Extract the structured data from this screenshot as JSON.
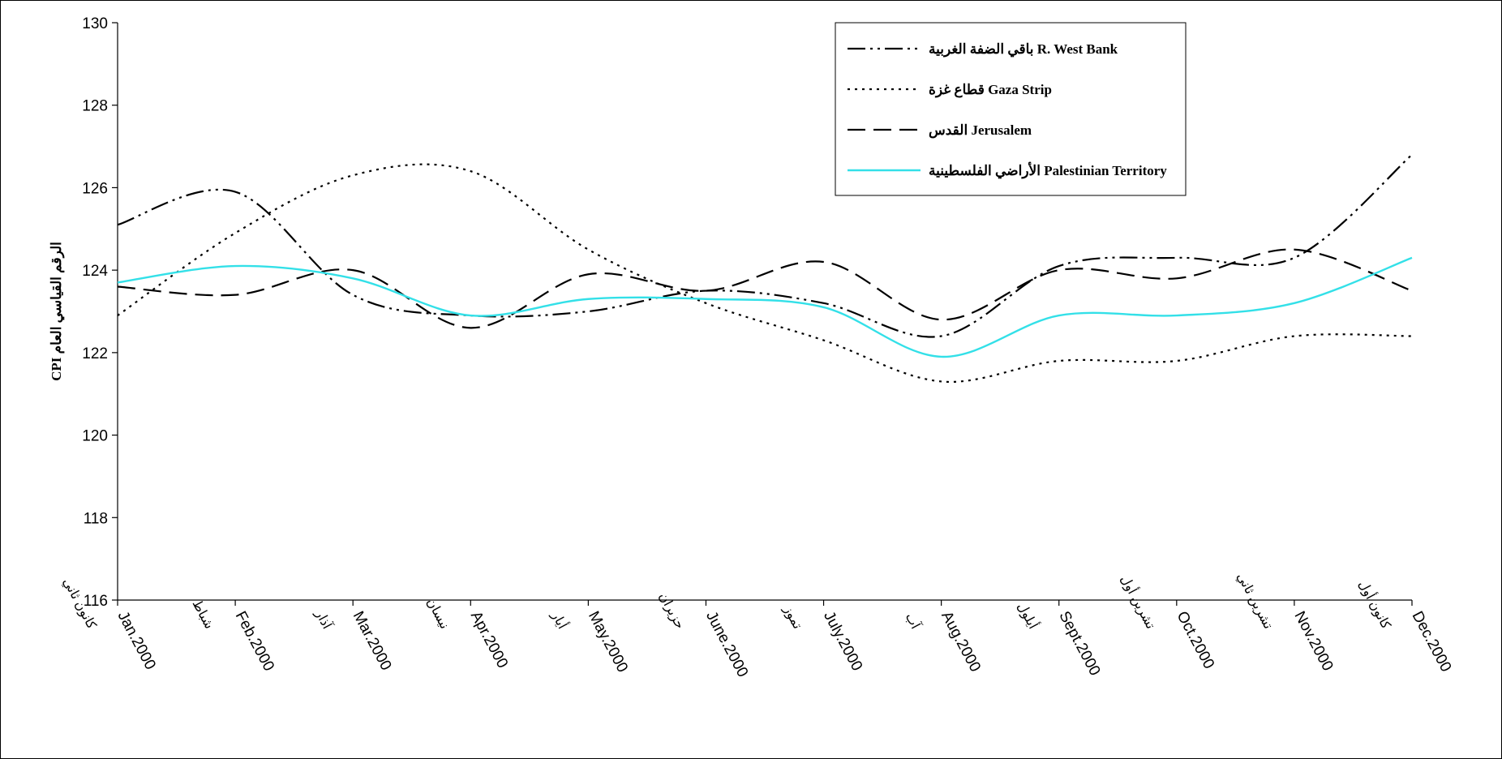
{
  "chart_data": {
    "type": "line",
    "ylabel": "CPI الرقم القياسي العام",
    "xlabel": "",
    "ylim": [
      116,
      130
    ],
    "y_ticks": [
      116,
      118,
      120,
      122,
      124,
      126,
      128,
      130
    ],
    "grid": false,
    "legend_position": "top-right",
    "categories": [
      {
        "en": "Jan.2000",
        "ar": "كانون ثاني"
      },
      {
        "en": "Feb.2000",
        "ar": "شباط"
      },
      {
        "en": "Mar.2000",
        "ar": "آذار"
      },
      {
        "en": "Apr.2000",
        "ar": "نيسان"
      },
      {
        "en": "May.2000",
        "ar": "أيار"
      },
      {
        "en": "June.2000",
        "ar": "حزيران"
      },
      {
        "en": "July.2000",
        "ar": "تموز"
      },
      {
        "en": "Aug.2000",
        "ar": "آب"
      },
      {
        "en": "Sept.2000",
        "ar": "أيلول"
      },
      {
        "en": "Oct.2000",
        "ar": "تشرين أول"
      },
      {
        "en": "Nov.2000",
        "ar": "تشرين ثاني"
      },
      {
        "en": "Dec.2000",
        "ar": "كانون أول"
      }
    ],
    "series": [
      {
        "name": "باقي الضفة الغربية R. West Bank",
        "dash": "dashdotdot",
        "color": "#000000",
        "values": [
          125.1,
          125.9,
          123.4,
          122.9,
          123.0,
          123.5,
          123.2,
          122.4,
          124.1,
          124.3,
          124.3,
          126.8
        ]
      },
      {
        "name": "قطاع غزة Gaza Strip",
        "dash": "dot",
        "color": "#000000",
        "values": [
          122.9,
          124.9,
          126.3,
          126.4,
          124.5,
          123.2,
          122.3,
          121.3,
          121.8,
          121.8,
          122.4,
          122.4
        ]
      },
      {
        "name": "القدس Jerusalem",
        "dash": "longdash",
        "color": "#000000",
        "values": [
          123.6,
          123.4,
          124.0,
          122.6,
          123.9,
          123.5,
          124.2,
          122.8,
          124.0,
          123.8,
          124.5,
          123.5
        ]
      },
      {
        "name": "الأراضي الفلسطينية Palestinian Territory",
        "dash": "solid",
        "color": "#33e0e8",
        "values": [
          123.7,
          124.1,
          123.8,
          122.9,
          123.3,
          123.3,
          123.1,
          121.9,
          122.9,
          122.9,
          123.2,
          124.3
        ]
      }
    ]
  }
}
